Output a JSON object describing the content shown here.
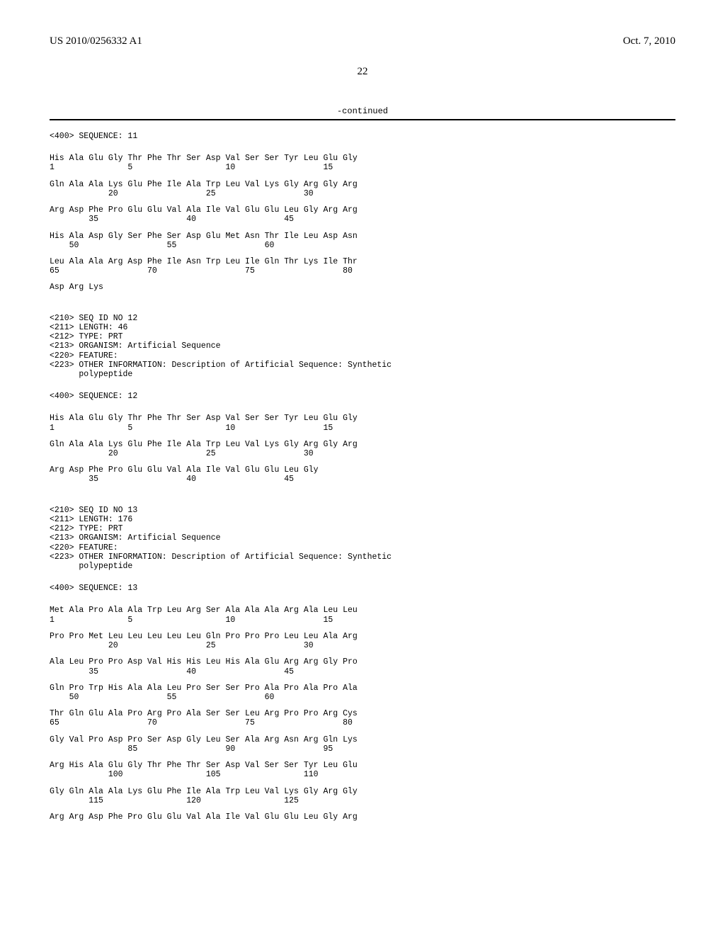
{
  "header": {
    "left": "US 2010/0256332 A1",
    "right": "Oct. 7, 2010"
  },
  "page_number": "22",
  "continued_label": "-continued",
  "sequences": [
    {
      "header": "<400> SEQUENCE: 11",
      "rows": [
        {
          "aa": "His Ala Glu Gly Thr Phe Thr Ser Asp Val Ser Ser Tyr Leu Glu Gly",
          "nums": "1               5                   10                  15"
        },
        {
          "aa": "Gln Ala Ala Lys Glu Phe Ile Ala Trp Leu Val Lys Gly Arg Gly Arg",
          "nums": "            20                  25                  30"
        },
        {
          "aa": "Arg Asp Phe Pro Glu Glu Val Ala Ile Val Glu Glu Leu Gly Arg Arg",
          "nums": "        35                  40                  45"
        },
        {
          "aa": "His Ala Asp Gly Ser Phe Ser Asp Glu Met Asn Thr Ile Leu Asp Asn",
          "nums": "    50                  55                  60"
        },
        {
          "aa": "Leu Ala Ala Arg Asp Phe Ile Asn Trp Leu Ile Gln Thr Lys Ile Thr",
          "nums": "65                  70                  75                  80"
        },
        {
          "aa": "Asp Arg Lys",
          "nums": ""
        }
      ]
    },
    {
      "meta": [
        "<210> SEQ ID NO 12",
        "<211> LENGTH: 46",
        "<212> TYPE: PRT",
        "<213> ORGANISM: Artificial Sequence",
        "<220> FEATURE:",
        "<223> OTHER INFORMATION: Description of Artificial Sequence: Synthetic",
        "      polypeptide"
      ],
      "header": "<400> SEQUENCE: 12",
      "rows": [
        {
          "aa": "His Ala Glu Gly Thr Phe Thr Ser Asp Val Ser Ser Tyr Leu Glu Gly",
          "nums": "1               5                   10                  15"
        },
        {
          "aa": "Gln Ala Ala Lys Glu Phe Ile Ala Trp Leu Val Lys Gly Arg Gly Arg",
          "nums": "            20                  25                  30"
        },
        {
          "aa": "Arg Asp Phe Pro Glu Glu Val Ala Ile Val Glu Glu Leu Gly",
          "nums": "        35                  40                  45"
        }
      ]
    },
    {
      "meta": [
        "<210> SEQ ID NO 13",
        "<211> LENGTH: 176",
        "<212> TYPE: PRT",
        "<213> ORGANISM: Artificial Sequence",
        "<220> FEATURE:",
        "<223> OTHER INFORMATION: Description of Artificial Sequence: Synthetic",
        "      polypeptide"
      ],
      "header": "<400> SEQUENCE: 13",
      "rows": [
        {
          "aa": "Met Ala Pro Ala Ala Trp Leu Arg Ser Ala Ala Ala Arg Ala Leu Leu",
          "nums": "1               5                   10                  15"
        },
        {
          "aa": "Pro Pro Met Leu Leu Leu Leu Leu Gln Pro Pro Pro Leu Leu Ala Arg",
          "nums": "            20                  25                  30"
        },
        {
          "aa": "Ala Leu Pro Pro Asp Val His His Leu His Ala Glu Arg Arg Gly Pro",
          "nums": "        35                  40                  45"
        },
        {
          "aa": "Gln Pro Trp His Ala Ala Leu Pro Ser Ser Pro Ala Pro Ala Pro Ala",
          "nums": "    50                  55                  60"
        },
        {
          "aa": "Thr Gln Glu Ala Pro Arg Pro Ala Ser Ser Leu Arg Pro Pro Arg Cys",
          "nums": "65                  70                  75                  80"
        },
        {
          "aa": "Gly Val Pro Asp Pro Ser Asp Gly Leu Ser Ala Arg Asn Arg Gln Lys",
          "nums": "                85                  90                  95"
        },
        {
          "aa": "Arg His Ala Glu Gly Thr Phe Thr Ser Asp Val Ser Ser Tyr Leu Glu",
          "nums": "            100                 105                 110"
        },
        {
          "aa": "Gly Gln Ala Ala Lys Glu Phe Ile Ala Trp Leu Val Lys Gly Arg Gly",
          "nums": "        115                 120                 125"
        },
        {
          "aa": "Arg Arg Asp Phe Pro Glu Glu Val Ala Ile Val Glu Glu Leu Gly Arg",
          "nums": ""
        }
      ]
    }
  ]
}
